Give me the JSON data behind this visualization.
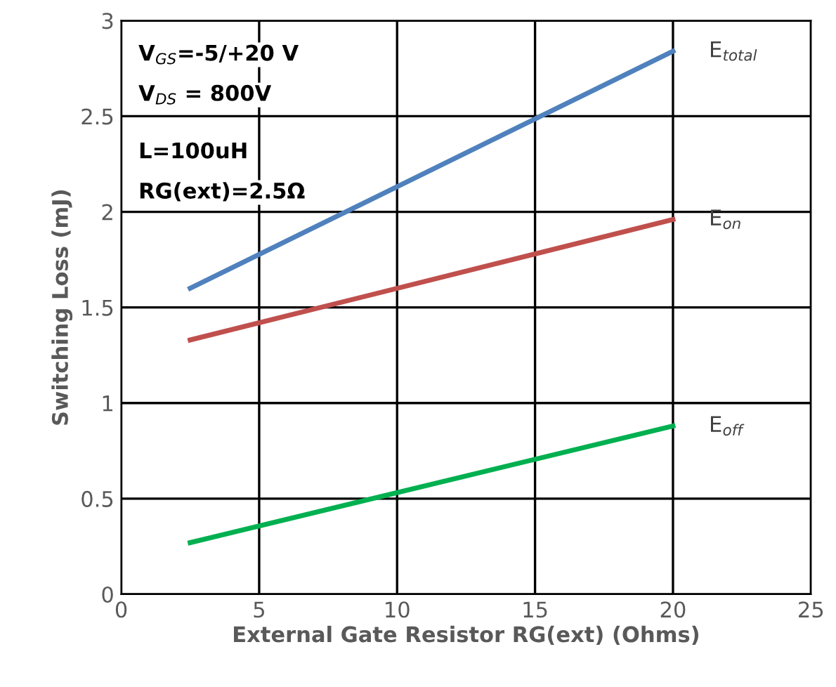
{
  "chart_data": {
    "type": "line",
    "xlabel": "External Gate Resistor RG(ext) (Ohms)",
    "ylabel": "Switching Loss (mJ)",
    "x": [
      2.5,
      20
    ],
    "series": [
      {
        "name": "E$_{total}$",
        "color": "#4f81bd",
        "values": [
          1.6,
          2.84
        ]
      },
      {
        "name": "E$_{on}$",
        "color": "#c0504d",
        "values": [
          1.33,
          1.96
        ]
      },
      {
        "name": "E$_{off}$",
        "color": "#00b050",
        "values": [
          0.27,
          0.88
        ]
      }
    ],
    "xlim": [
      0,
      25
    ],
    "xticks": [
      0,
      5,
      10,
      15,
      20,
      25
    ],
    "ylim": [
      0,
      3
    ],
    "yticks": [
      0,
      0.5,
      1,
      1.5,
      2,
      2.5,
      3
    ],
    "grid": true,
    "legend": false,
    "marker": "none",
    "line_style": "solid",
    "annotations": [
      "V$_{GS}$=-5/+20 V",
      "V$_{DS}$ = 800V",
      "L=100uH",
      "RG(ext)=2.5Ω"
    ]
  }
}
